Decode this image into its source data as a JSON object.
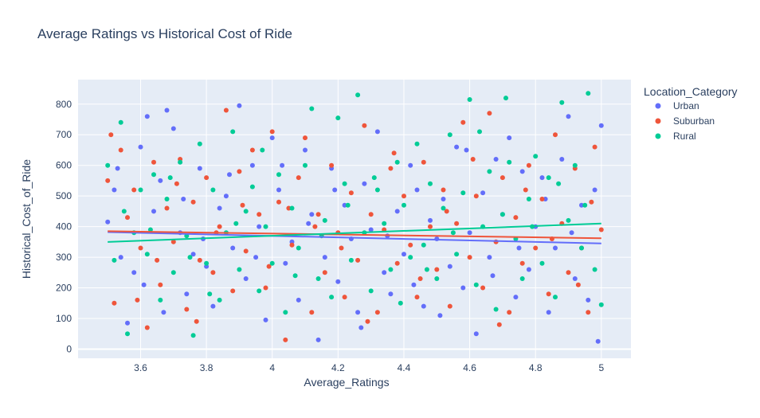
{
  "chart_data": {
    "type": "scatter",
    "title": "Average Ratings vs Historical Cost of Ride",
    "xlabel": "Average_Ratings",
    "ylabel": "Historical_Cost_of_Ride",
    "xlim": [
      3.41,
      5.09
    ],
    "ylim": [
      -30,
      880
    ],
    "xticks": [
      "3.6",
      "3.8",
      "4",
      "4.2",
      "4.4",
      "4.6",
      "4.8",
      "5"
    ],
    "yticks": [
      "0",
      "100",
      "200",
      "300",
      "400",
      "500",
      "600",
      "700",
      "800"
    ],
    "grid": true,
    "legend_title": "Location_Category",
    "legend_position": "top-right",
    "trendlines": true,
    "series": [
      {
        "name": "Urban",
        "color": "#636efa",
        "trend": [
          [
            3.5,
            382
          ],
          [
            5.0,
            345
          ]
        ],
        "points": [
          [
            3.5,
            415
          ],
          [
            3.52,
            520
          ],
          [
            3.54,
            300
          ],
          [
            3.56,
            85
          ],
          [
            3.58,
            250
          ],
          [
            3.6,
            660
          ],
          [
            3.62,
            760
          ],
          [
            3.64,
            450
          ],
          [
            3.66,
            550
          ],
          [
            3.68,
            780
          ],
          [
            3.7,
            720
          ],
          [
            3.72,
            380
          ],
          [
            3.74,
            180
          ],
          [
            3.76,
            310
          ],
          [
            3.78,
            590
          ],
          [
            3.8,
            270
          ],
          [
            3.82,
            140
          ],
          [
            3.84,
            460
          ],
          [
            3.86,
            500
          ],
          [
            3.88,
            330
          ],
          [
            3.9,
            795
          ],
          [
            3.92,
            230
          ],
          [
            3.94,
            600
          ],
          [
            3.96,
            400
          ],
          [
            3.98,
            95
          ],
          [
            4.0,
            690
          ],
          [
            4.02,
            520
          ],
          [
            4.04,
            280
          ],
          [
            4.06,
            350
          ],
          [
            4.08,
            160
          ],
          [
            4.1,
            650
          ],
          [
            4.12,
            440
          ],
          [
            4.14,
            30
          ],
          [
            4.16,
            300
          ],
          [
            4.18,
            590
          ],
          [
            4.2,
            220
          ],
          [
            4.22,
            470
          ],
          [
            4.24,
            360
          ],
          [
            4.26,
            120
          ],
          [
            4.28,
            540
          ],
          [
            4.3,
            390
          ],
          [
            4.32,
            710
          ],
          [
            4.34,
            250
          ],
          [
            4.36,
            180
          ],
          [
            4.38,
            450
          ],
          [
            4.4,
            310
          ],
          [
            4.42,
            600
          ],
          [
            4.44,
            520
          ],
          [
            4.46,
            140
          ],
          [
            4.48,
            420
          ],
          [
            4.5,
            360
          ],
          [
            4.52,
            490
          ],
          [
            4.54,
            270
          ],
          [
            4.56,
            660
          ],
          [
            4.58,
            200
          ],
          [
            4.6,
            380
          ],
          [
            4.62,
            50
          ],
          [
            4.64,
            510
          ],
          [
            4.66,
            300
          ],
          [
            4.68,
            620
          ],
          [
            4.7,
            440
          ],
          [
            4.72,
            690
          ],
          [
            4.74,
            170
          ],
          [
            4.76,
            580
          ],
          [
            4.78,
            260
          ],
          [
            4.8,
            400
          ],
          [
            4.82,
            560
          ],
          [
            4.84,
            120
          ],
          [
            4.86,
            330
          ],
          [
            4.88,
            620
          ],
          [
            4.9,
            760
          ],
          [
            4.92,
            230
          ],
          [
            4.94,
            470
          ],
          [
            4.96,
            160
          ],
          [
            4.98,
            520
          ],
          [
            5.0,
            730
          ],
          [
            3.53,
            590
          ],
          [
            3.61,
            210
          ],
          [
            3.67,
            120
          ],
          [
            3.73,
            490
          ],
          [
            3.79,
            360
          ],
          [
            3.87,
            570
          ],
          [
            3.95,
            300
          ],
          [
            4.03,
            600
          ],
          [
            4.11,
            410
          ],
          [
            4.19,
            520
          ],
          [
            4.27,
            70
          ],
          [
            4.35,
            370
          ],
          [
            4.43,
            210
          ],
          [
            4.51,
            110
          ],
          [
            4.59,
            650
          ],
          [
            4.67,
            240
          ],
          [
            4.75,
            330
          ],
          [
            4.83,
            490
          ],
          [
            4.91,
            380
          ],
          [
            4.99,
            25
          ]
        ]
      },
      {
        "name": "Suburban",
        "color": "#ef553b",
        "trend": [
          [
            3.5,
            385
          ],
          [
            5.0,
            362
          ]
        ],
        "points": [
          [
            3.5,
            550
          ],
          [
            3.52,
            150
          ],
          [
            3.54,
            650
          ],
          [
            3.56,
            430
          ],
          [
            3.58,
            520
          ],
          [
            3.6,
            330
          ],
          [
            3.62,
            70
          ],
          [
            3.64,
            610
          ],
          [
            3.66,
            210
          ],
          [
            3.68,
            460
          ],
          [
            3.7,
            350
          ],
          [
            3.72,
            620
          ],
          [
            3.74,
            130
          ],
          [
            3.76,
            480
          ],
          [
            3.78,
            290
          ],
          [
            3.8,
            560
          ],
          [
            3.82,
            250
          ],
          [
            3.84,
            400
          ],
          [
            3.86,
            780
          ],
          [
            3.88,
            190
          ],
          [
            3.9,
            580
          ],
          [
            3.92,
            320
          ],
          [
            3.94,
            650
          ],
          [
            3.96,
            440
          ],
          [
            3.98,
            200
          ],
          [
            4.0,
            710
          ],
          [
            4.02,
            480
          ],
          [
            4.04,
            30
          ],
          [
            4.06,
            340
          ],
          [
            4.08,
            560
          ],
          [
            4.1,
            690
          ],
          [
            4.12,
            120
          ],
          [
            4.14,
            440
          ],
          [
            4.16,
            250
          ],
          [
            4.18,
            600
          ],
          [
            4.2,
            380
          ],
          [
            4.22,
            170
          ],
          [
            4.24,
            510
          ],
          [
            4.26,
            290
          ],
          [
            4.28,
            730
          ],
          [
            4.3,
            440
          ],
          [
            4.32,
            120
          ],
          [
            4.34,
            390
          ],
          [
            4.36,
            590
          ],
          [
            4.38,
            280
          ],
          [
            4.4,
            500
          ],
          [
            4.42,
            340
          ],
          [
            4.44,
            170
          ],
          [
            4.46,
            610
          ],
          [
            4.48,
            400
          ],
          [
            4.5,
            260
          ],
          [
            4.52,
            520
          ],
          [
            4.54,
            140
          ],
          [
            4.56,
            410
          ],
          [
            4.58,
            740
          ],
          [
            4.6,
            300
          ],
          [
            4.62,
            500
          ],
          [
            4.64,
            200
          ],
          [
            4.66,
            770
          ],
          [
            4.68,
            350
          ],
          [
            4.7,
            560
          ],
          [
            4.72,
            120
          ],
          [
            4.74,
            430
          ],
          [
            4.76,
            280
          ],
          [
            4.78,
            600
          ],
          [
            4.8,
            330
          ],
          [
            4.82,
            490
          ],
          [
            4.84,
            180
          ],
          [
            4.86,
            700
          ],
          [
            4.88,
            410
          ],
          [
            4.9,
            250
          ],
          [
            4.92,
            590
          ],
          [
            4.94,
            330
          ],
          [
            4.96,
            120
          ],
          [
            4.98,
            660
          ],
          [
            5.0,
            390
          ],
          [
            3.51,
            700
          ],
          [
            3.59,
            160
          ],
          [
            3.65,
            290
          ],
          [
            3.71,
            540
          ],
          [
            3.77,
            90
          ],
          [
            3.83,
            380
          ],
          [
            3.91,
            470
          ],
          [
            3.99,
            270
          ],
          [
            4.05,
            460
          ],
          [
            4.13,
            400
          ],
          [
            4.21,
            330
          ],
          [
            4.29,
            90
          ],
          [
            4.37,
            640
          ],
          [
            4.45,
            230
          ],
          [
            4.53,
            450
          ],
          [
            4.61,
            620
          ],
          [
            4.69,
            80
          ],
          [
            4.77,
            520
          ],
          [
            4.85,
            360
          ],
          [
            4.93,
            210
          ],
          [
            4.97,
            480
          ]
        ]
      },
      {
        "name": "Rural",
        "color": "#00cc96",
        "trend": [
          [
            3.5,
            350
          ],
          [
            5.0,
            410
          ]
        ],
        "points": [
          [
            3.5,
            600
          ],
          [
            3.52,
            290
          ],
          [
            3.54,
            740
          ],
          [
            3.56,
            50
          ],
          [
            3.58,
            380
          ],
          [
            3.6,
            520
          ],
          [
            3.62,
            310
          ],
          [
            3.64,
            570
          ],
          [
            3.66,
            160
          ],
          [
            3.68,
            490
          ],
          [
            3.7,
            250
          ],
          [
            3.72,
            610
          ],
          [
            3.74,
            370
          ],
          [
            3.76,
            45
          ],
          [
            3.78,
            670
          ],
          [
            3.8,
            280
          ],
          [
            3.82,
            520
          ],
          [
            3.84,
            160
          ],
          [
            3.86,
            380
          ],
          [
            3.88,
            710
          ],
          [
            3.9,
            260
          ],
          [
            3.92,
            450
          ],
          [
            3.94,
            530
          ],
          [
            3.96,
            190
          ],
          [
            3.98,
            400
          ],
          [
            4.0,
            280
          ],
          [
            4.02,
            570
          ],
          [
            4.04,
            120
          ],
          [
            4.06,
            460
          ],
          [
            4.08,
            330
          ],
          [
            4.1,
            600
          ],
          [
            4.12,
            785
          ],
          [
            4.14,
            230
          ],
          [
            4.16,
            420
          ],
          [
            4.18,
            170
          ],
          [
            4.2,
            755
          ],
          [
            4.22,
            540
          ],
          [
            4.24,
            290
          ],
          [
            4.26,
            830
          ],
          [
            4.28,
            380
          ],
          [
            4.3,
            190
          ],
          [
            4.32,
            520
          ],
          [
            4.34,
            410
          ],
          [
            4.36,
            260
          ],
          [
            4.38,
            610
          ],
          [
            4.4,
            470
          ],
          [
            4.42,
            300
          ],
          [
            4.44,
            670
          ],
          [
            4.46,
            340
          ],
          [
            4.48,
            540
          ],
          [
            4.5,
            230
          ],
          [
            4.52,
            460
          ],
          [
            4.54,
            700
          ],
          [
            4.56,
            310
          ],
          [
            4.58,
            510
          ],
          [
            4.6,
            815
          ],
          [
            4.62,
            210
          ],
          [
            4.64,
            400
          ],
          [
            4.66,
            580
          ],
          [
            4.68,
            130
          ],
          [
            4.7,
            440
          ],
          [
            4.72,
            610
          ],
          [
            4.74,
            360
          ],
          [
            4.76,
            230
          ],
          [
            4.78,
            490
          ],
          [
            4.8,
            630
          ],
          [
            4.82,
            280
          ],
          [
            4.84,
            560
          ],
          [
            4.86,
            170
          ],
          [
            4.88,
            805
          ],
          [
            4.9,
            420
          ],
          [
            4.92,
            600
          ],
          [
            4.94,
            330
          ],
          [
            4.96,
            835
          ],
          [
            4.98,
            260
          ],
          [
            5.0,
            145
          ],
          [
            3.55,
            450
          ],
          [
            3.63,
            390
          ],
          [
            3.69,
            560
          ],
          [
            3.75,
            300
          ],
          [
            3.81,
            180
          ],
          [
            3.89,
            410
          ],
          [
            3.97,
            650
          ],
          [
            4.07,
            240
          ],
          [
            4.15,
            370
          ],
          [
            4.23,
            470
          ],
          [
            4.31,
            560
          ],
          [
            4.39,
            150
          ],
          [
            4.47,
            260
          ],
          [
            4.55,
            380
          ],
          [
            4.63,
            710
          ],
          [
            4.71,
            820
          ],
          [
            4.79,
            400
          ],
          [
            4.87,
            540
          ],
          [
            4.95,
            470
          ]
        ]
      }
    ]
  }
}
